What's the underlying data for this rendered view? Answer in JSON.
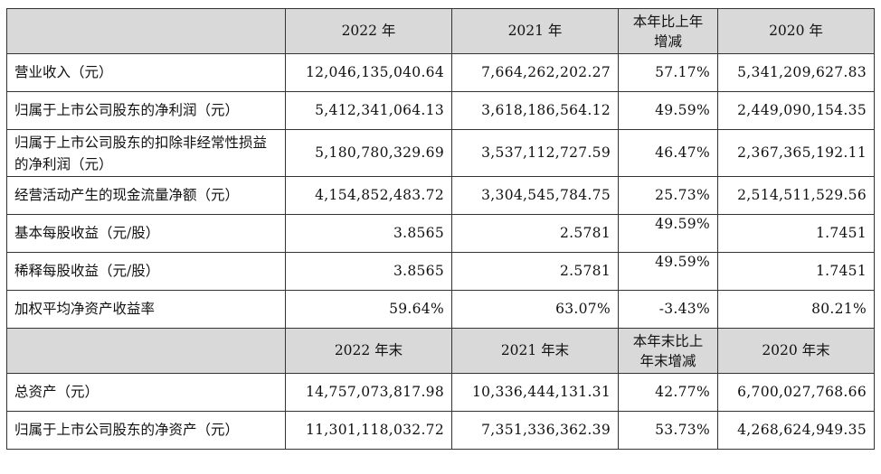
{
  "header1": {
    "c1": "2022 年",
    "c2": "2021 年",
    "c3": "本年比上年\n增减",
    "c4": "2020 年"
  },
  "rows1": [
    {
      "label": "营业收入（元）",
      "v2022": "12,046,135,040.64",
      "v2021": "7,664,262,202.27",
      "chg": "57.17%",
      "v2020": "5,341,209,627.83"
    },
    {
      "label": "归属于上市公司股东的净利润（元）",
      "v2022": "5,412,341,064.13",
      "v2021": "3,618,186,564.12",
      "chg": "49.59%",
      "v2020": "2,449,090,154.35"
    },
    {
      "label": "归属于上市公司股东的扣除非经常性损益的净利润（元）",
      "v2022": "5,180,780,329.69",
      "v2021": "3,537,112,727.59",
      "chg": "46.47%",
      "v2020": "2,367,365,192.11"
    },
    {
      "label": "经营活动产生的现金流量净额（元）",
      "v2022": "4,154,852,483.72",
      "v2021": "3,304,545,784.75",
      "chg": "25.73%",
      "v2020": "2,514,511,529.56"
    },
    {
      "label": "基本每股收益（元/股）",
      "v2022": "3.8565",
      "v2021": "2.5781",
      "chg": "49.59%",
      "v2020": "1.7451"
    },
    {
      "label": "稀释每股收益（元/股）",
      "v2022": "3.8565",
      "v2021": "2.5781",
      "chg": "49.59%",
      "v2020": "1.7451"
    },
    {
      "label": "加权平均净资产收益率",
      "v2022": "59.64%",
      "v2021": "63.07%",
      "chg": "-3.43%",
      "v2020": "80.21%"
    }
  ],
  "header2": {
    "c1": "2022 年末",
    "c2": "2021 年末",
    "c3": "本年末比上\n年末增减",
    "c4": "2020 年末"
  },
  "rows2": [
    {
      "label": "总资产（元）",
      "v2022": "14,757,073,817.98",
      "v2021": "10,336,444,131.31",
      "chg": "42.77%",
      "v2020": "6,700,027,768.66"
    },
    {
      "label": "归属于上市公司股东的净资产（元）",
      "v2022": "11,301,118,032.72",
      "v2021": "7,351,336,362.39",
      "chg": "53.73%",
      "v2020": "4,268,624,949.35"
    }
  ]
}
